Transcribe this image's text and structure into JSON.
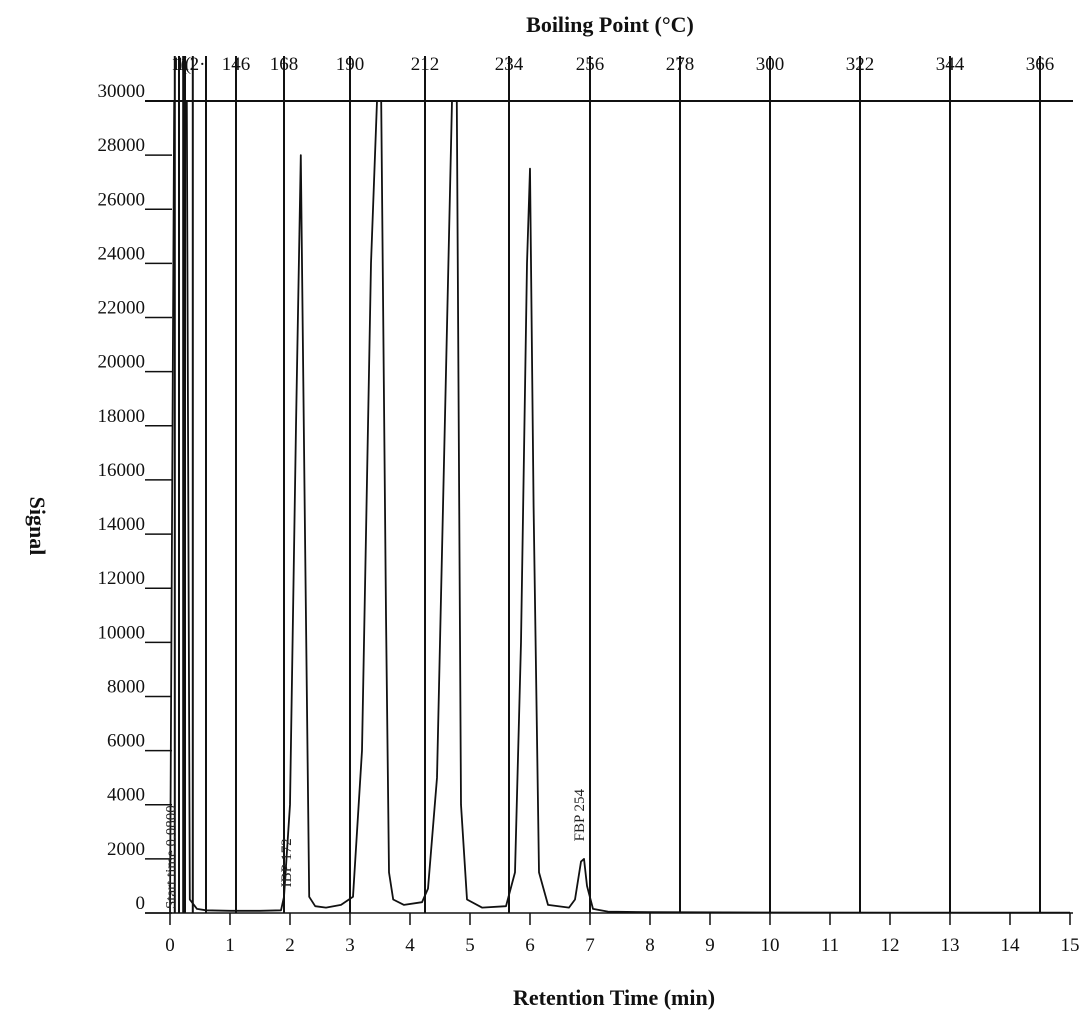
{
  "chart_data": {
    "type": "line",
    "title": "",
    "xlabel": "Retention Time (min)",
    "ylabel": "Signal",
    "x2label": "Boiling Point (°C)",
    "xlim": [
      0,
      15
    ],
    "ylim": [
      0,
      30000
    ],
    "x_ticks": [
      "0",
      "1",
      "2",
      "3",
      "4",
      "5",
      "6",
      "7",
      "8",
      "9",
      "10",
      "11",
      "12",
      "13",
      "14",
      "15"
    ],
    "y_ticks": [
      "0",
      "2000",
      "4000",
      "6000",
      "8000",
      "10000",
      "12000",
      "14000",
      "16000",
      "18000",
      "20000",
      "22000",
      "24000",
      "26000",
      "28000",
      "30000"
    ],
    "bp_markers": [
      {
        "label": "1(",
        "t": 0.15
      },
      {
        "label": "1(",
        "t": 0.22
      },
      {
        "label": "12·",
        "t": 0.38
      },
      {
        "label": "146",
        "t": 1.1
      },
      {
        "label": "168",
        "t": 1.9
      },
      {
        "label": "190",
        "t": 3.0
      },
      {
        "label": "212",
        "t": 4.25
      },
      {
        "label": "234",
        "t": 5.65
      },
      {
        "label": "256",
        "t": 7.0
      },
      {
        "label": "278",
        "t": 8.5
      },
      {
        "label": "300",
        "t": 10.0
      },
      {
        "label": "322",
        "t": 11.5
      },
      {
        "label": "344",
        "t": 13.0
      },
      {
        "label": "366",
        "t": 14.5
      }
    ],
    "extra_verticals": [
      0.08,
      0.25,
      0.6
    ],
    "series": [
      {
        "x": [
          0.0,
          0.07,
          0.12,
          0.16,
          0.2,
          0.24,
          0.28,
          0.33,
          0.45,
          0.6,
          1.0,
          1.5,
          1.85,
          1.9,
          2.0,
          2.1,
          2.18,
          2.25,
          2.32,
          2.42,
          2.6,
          2.85,
          3.05,
          3.2,
          3.35,
          3.45,
          3.52,
          3.6,
          3.65,
          3.72,
          3.9,
          4.2,
          4.3,
          4.45,
          4.6,
          4.7,
          4.78,
          4.85,
          4.95,
          5.2,
          5.6,
          5.75,
          5.85,
          5.95,
          6.0,
          6.06,
          6.15,
          6.3,
          6.65,
          6.75,
          6.85,
          6.9,
          6.95,
          7.05,
          7.3,
          8.0,
          10.0,
          12.0,
          14.0,
          15.0
        ],
        "y": [
          0,
          30000,
          30000,
          30000,
          30000,
          30000,
          30000,
          500,
          150,
          100,
          80,
          80,
          100,
          600,
          4000,
          18000,
          28000,
          14000,
          600,
          250,
          200,
          300,
          600,
          6000,
          24000,
          30000,
          30000,
          11000,
          1500,
          500,
          300,
          400,
          900,
          5000,
          20000,
          30000,
          30000,
          4000,
          500,
          200,
          250,
          1500,
          10000,
          24000,
          27500,
          15000,
          1500,
          300,
          200,
          500,
          1900,
          2000,
          1000,
          150,
          50,
          30,
          20,
          15,
          10,
          10
        ]
      }
    ],
    "annotations": [
      {
        "text": "Start time 0.0800",
        "t": 0.09,
        "y": 0
      },
      {
        "text": "IBP 172",
        "t": 2.02,
        "y": 800
      },
      {
        "text": "FBP 254",
        "t": 6.9,
        "y": 2500
      }
    ]
  }
}
